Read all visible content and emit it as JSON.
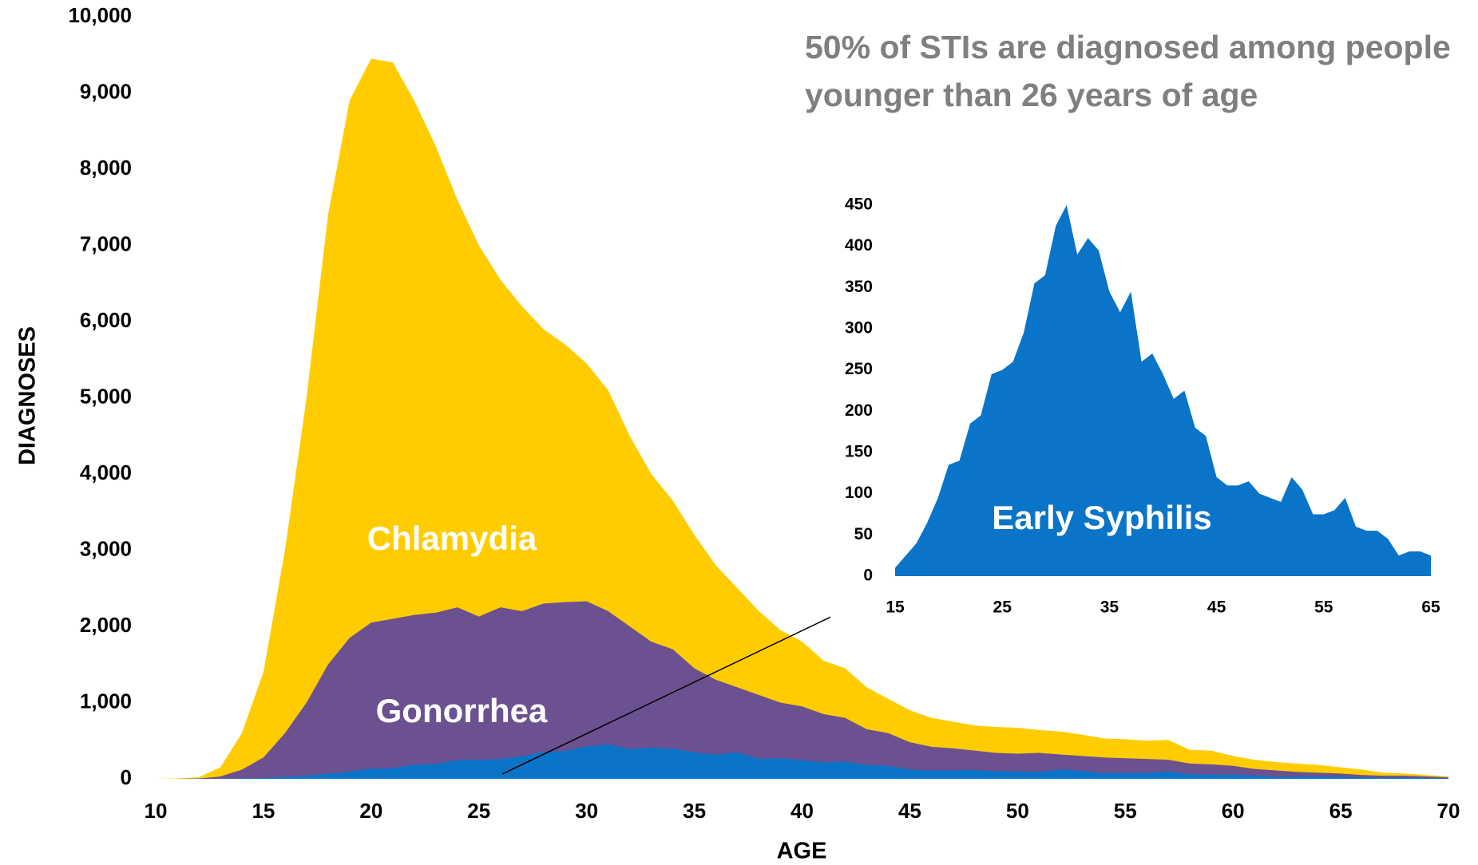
{
  "chart_data": {
    "type": "area",
    "annotation": [
      "50% of STIs are diagnosed among people",
      "younger than 26 years of age"
    ],
    "xlabel": "AGE",
    "ylabel": "DIAGNOSES",
    "x": [
      10,
      11,
      12,
      13,
      14,
      15,
      16,
      17,
      18,
      19,
      20,
      21,
      22,
      23,
      24,
      25,
      26,
      27,
      28,
      29,
      30,
      31,
      32,
      33,
      34,
      35,
      36,
      37,
      38,
      39,
      40,
      41,
      42,
      43,
      44,
      45,
      46,
      47,
      48,
      49,
      50,
      51,
      52,
      53,
      54,
      55,
      56,
      57,
      58,
      59,
      60,
      61,
      62,
      63,
      64,
      65,
      66,
      67,
      68,
      69,
      70
    ],
    "xlim": [
      10,
      70
    ],
    "xticks": [
      10,
      15,
      20,
      25,
      30,
      35,
      40,
      45,
      50,
      55,
      60,
      65,
      70
    ],
    "ylim": [
      0,
      10000
    ],
    "yticks": [
      0,
      {
        "value": 1000,
        "label": "1,000"
      },
      {
        "value": 2000,
        "label": "2,000"
      },
      {
        "value": 3000,
        "label": "3,000"
      },
      {
        "value": 4000,
        "label": "4,000"
      },
      {
        "value": 5000,
        "label": "5,000"
      },
      {
        "value": 6000,
        "label": "6,000"
      },
      {
        "value": 7000,
        "label": "7,000"
      },
      {
        "value": 8000,
        "label": "8,000"
      },
      {
        "value": 9000,
        "label": "9,000"
      },
      {
        "value": 10000,
        "label": "10,000"
      }
    ],
    "series": [
      {
        "name": "Chlamydia",
        "color": "#ffcc00",
        "values": [
          0,
          5,
          20,
          150,
          600,
          1400,
          3000,
          5000,
          7400,
          8900,
          9450,
          9400,
          8900,
          8300,
          7600,
          7000,
          6550,
          6200,
          5900,
          5700,
          5450,
          5100,
          4500,
          4000,
          3650,
          3200,
          2800,
          2500,
          2200,
          1950,
          1800,
          1550,
          1450,
          1200,
          1050,
          900,
          800,
          750,
          700,
          680,
          670,
          640,
          620,
          580,
          530,
          520,
          500,
          510,
          380,
          370,
          300,
          250,
          220,
          200,
          180,
          150,
          120,
          80,
          70,
          50,
          30
        ]
      },
      {
        "name": "Gonorrhea",
        "color": "#6c5191",
        "values": [
          0,
          0,
          5,
          30,
          120,
          280,
          600,
          1000,
          1500,
          1850,
          2050,
          2100,
          2150,
          2180,
          2250,
          2130,
          2250,
          2200,
          2300,
          2320,
          2330,
          2200,
          2000,
          1800,
          1700,
          1450,
          1300,
          1200,
          1100,
          1000,
          950,
          850,
          800,
          650,
          600,
          480,
          420,
          400,
          370,
          340,
          330,
          340,
          320,
          300,
          280,
          270,
          260,
          250,
          200,
          190,
          170,
          130,
          110,
          90,
          80,
          70,
          50,
          40,
          40,
          30,
          20
        ]
      },
      {
        "name": "Early Syphilis",
        "color": "#0a74c8",
        "values": [
          0,
          0,
          1,
          2,
          5,
          10,
          25,
          40,
          65,
          95,
          135,
          140,
          185,
          195,
          245,
          250,
          260,
          295,
          355,
          365,
          425,
          450,
          390,
          410,
          395,
          345,
          320,
          345,
          260,
          270,
          245,
          215,
          225,
          180,
          170,
          120,
          110,
          110,
          115,
          100,
          95,
          90,
          120,
          105,
          75,
          75,
          80,
          95,
          60,
          55,
          55,
          45,
          25,
          30,
          30,
          25,
          20,
          15,
          15,
          10,
          8
        ]
      }
    ],
    "inset": {
      "series": 2,
      "xlim": [
        15,
        65
      ],
      "xticks": [
        15,
        25,
        35,
        45,
        55,
        65
      ],
      "ylim": [
        0,
        450
      ],
      "yticks": [
        0,
        50,
        100,
        150,
        200,
        250,
        300,
        350,
        400,
        450
      ]
    }
  }
}
